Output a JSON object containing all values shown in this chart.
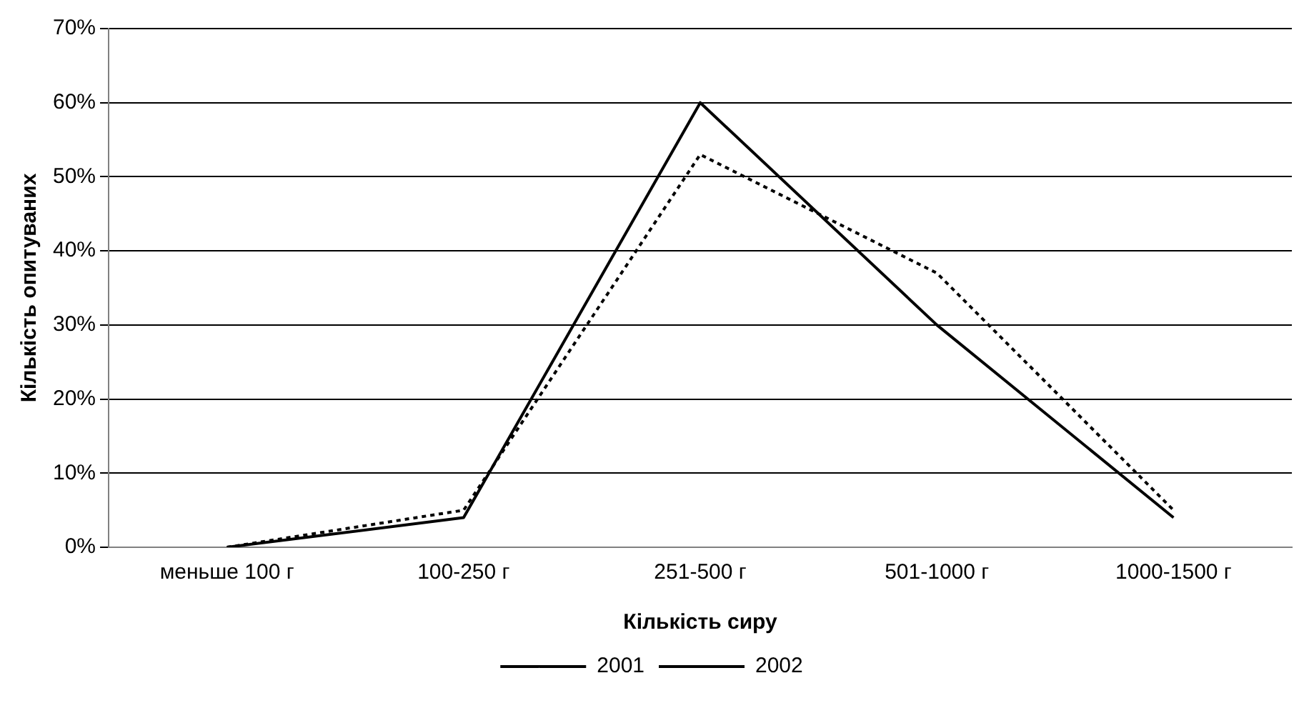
{
  "chart_data": {
    "type": "line",
    "xlabel": "Кількість сиру",
    "ylabel": "Кількість опитуваних",
    "categories": [
      "меньше 100 г",
      "100-250 г",
      "251-500 г",
      "501-1000 г",
      "1000-1500 г"
    ],
    "series": [
      {
        "name": "2001",
        "color": "#000000",
        "line_style": "dotted",
        "values": [
          0,
          5,
          53,
          37,
          5
        ]
      },
      {
        "name": "2002",
        "color": "#000000",
        "line_style": "solid",
        "values": [
          0,
          4,
          60,
          30,
          4
        ]
      }
    ],
    "ylim": [
      0,
      70
    ],
    "yticks": [
      {
        "value": 0,
        "label": "0%"
      },
      {
        "value": 10,
        "label": "10%"
      },
      {
        "value": 20,
        "label": "20%"
      },
      {
        "value": 30,
        "label": "30%"
      },
      {
        "value": 40,
        "label": "40%"
      },
      {
        "value": 50,
        "label": "50%"
      },
      {
        "value": 60,
        "label": "60%"
      },
      {
        "value": 70,
        "label": "70%"
      }
    ],
    "grid": "y",
    "legend": "bottom",
    "marker": "none"
  }
}
